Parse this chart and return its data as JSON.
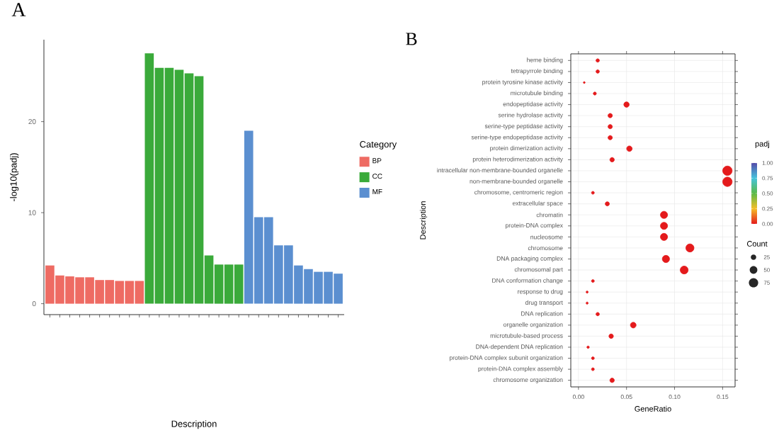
{
  "chart_data": [
    {
      "type": "bar",
      "title": "A",
      "xlabel": "Description",
      "ylabel": "-log10(padj)",
      "legend_title": "Category",
      "legend": "right",
      "categories": [
        null,
        null,
        null,
        null,
        null,
        null,
        null,
        null,
        null,
        null,
        null,
        null,
        null,
        null,
        null,
        null,
        null,
        null,
        null,
        null,
        null,
        null,
        null,
        null,
        null,
        null,
        null,
        null,
        null,
        null
      ],
      "ylim": [
        -1.2,
        29
      ],
      "yticks": [
        0,
        10,
        20
      ],
      "series": [
        {
          "name": "BP",
          "color": "#ee6b63",
          "values": [
            4.2,
            3.1,
            3.0,
            2.9,
            2.9,
            2.6,
            2.6,
            2.5,
            2.5,
            2.5,
            null,
            null,
            null,
            null,
            null,
            null,
            null,
            null,
            null,
            null,
            null,
            null,
            null,
            null,
            null,
            null,
            null,
            null,
            null,
            null
          ]
        },
        {
          "name": "CC",
          "color": "#3aaa3a",
          "values": [
            null,
            null,
            null,
            null,
            null,
            null,
            null,
            null,
            null,
            null,
            27.5,
            25.9,
            25.9,
            25.7,
            25.3,
            25.0,
            5.3,
            4.3,
            4.3,
            4.3,
            null,
            null,
            null,
            null,
            null,
            null,
            null,
            null,
            null,
            null
          ]
        },
        {
          "name": "MF",
          "color": "#5b8fd0",
          "values": [
            null,
            null,
            null,
            null,
            null,
            null,
            null,
            null,
            null,
            null,
            null,
            null,
            null,
            null,
            null,
            null,
            null,
            null,
            null,
            null,
            19.0,
            9.5,
            9.5,
            6.4,
            6.4,
            4.2,
            3.8,
            3.5,
            3.5,
            3.3
          ]
        }
      ]
    },
    {
      "type": "scatter",
      "title": "B",
      "xlabel": "GeneRatio",
      "ylabel": "Description",
      "legend_title": "Count",
      "clabel": "padj",
      "grid": true,
      "marker": "circle",
      "orientation": "horizontal",
      "categories": [
        "heme binding",
        "tetrapyrrole binding",
        "protein tyrosine kinase activity",
        "microtubule binding",
        "endopeptidase activity",
        "serine hydrolase activity",
        "serine-type peptidase activity",
        "serine-type endopeptidase activity",
        "protein dimerization activity",
        "protein heterodimerization activity",
        "intracellular non-membrane-bounded organelle",
        "non-membrane-bounded organelle",
        "chromosome, centromeric region",
        "extracellular space",
        "chromatin",
        "protein-DNA complex",
        "nucleosome",
        "chromosome",
        "DNA packaging complex",
        "chromosomal part",
        "DNA conformation change",
        "response to drug",
        "drug transport",
        "DNA replication",
        "organelle organization",
        "microtubule-based process",
        "DNA-dependent DNA replication",
        "protein-DNA complex subunit organization",
        "protein-DNA complex assembly",
        "chromosome organization"
      ],
      "values": [
        0.02,
        0.02,
        0.006,
        0.017,
        0.05,
        0.033,
        0.033,
        0.033,
        0.053,
        0.035,
        0.155,
        0.155,
        0.015,
        0.03,
        0.089,
        0.089,
        0.089,
        0.116,
        0.091,
        0.11,
        0.015,
        0.009,
        0.009,
        0.02,
        0.057,
        0.034,
        0.01,
        0.015,
        0.015,
        0.035
      ],
      "sizes": [
        10,
        10,
        3,
        8,
        25,
        16,
        16,
        16,
        26,
        17,
        76,
        76,
        7,
        15,
        44,
        44,
        44,
        57,
        45,
        54,
        7,
        4,
        4,
        10,
        28,
        17,
        5,
        7,
        7,
        17
      ],
      "size_legend": [
        25,
        50,
        75
      ],
      "cvalues": [
        0,
        0,
        0,
        0,
        0,
        0,
        0,
        0,
        0,
        0,
        0,
        0,
        0,
        0,
        0,
        0,
        0,
        0,
        0,
        0,
        0,
        0,
        0,
        0,
        0,
        0,
        0,
        0,
        0,
        0
      ],
      "clim": [
        0,
        1
      ],
      "cticks": [
        {
          "value": 0,
          "label": "0.00"
        },
        {
          "value": 0.25,
          "label": "0.25"
        },
        {
          "value": 0.5,
          "label": "0.50"
        },
        {
          "value": 0.75,
          "label": "0.75"
        },
        {
          "value": 1,
          "label": "1.00"
        }
      ],
      "xlim": [
        -0.008,
        0.163
      ],
      "xticks": [
        {
          "value": 0,
          "label": "0.00"
        },
        {
          "value": 0.05,
          "label": "0.05"
        },
        {
          "value": 0.1,
          "label": "0.10"
        },
        {
          "value": 0.15,
          "label": "0.15"
        }
      ]
    }
  ]
}
